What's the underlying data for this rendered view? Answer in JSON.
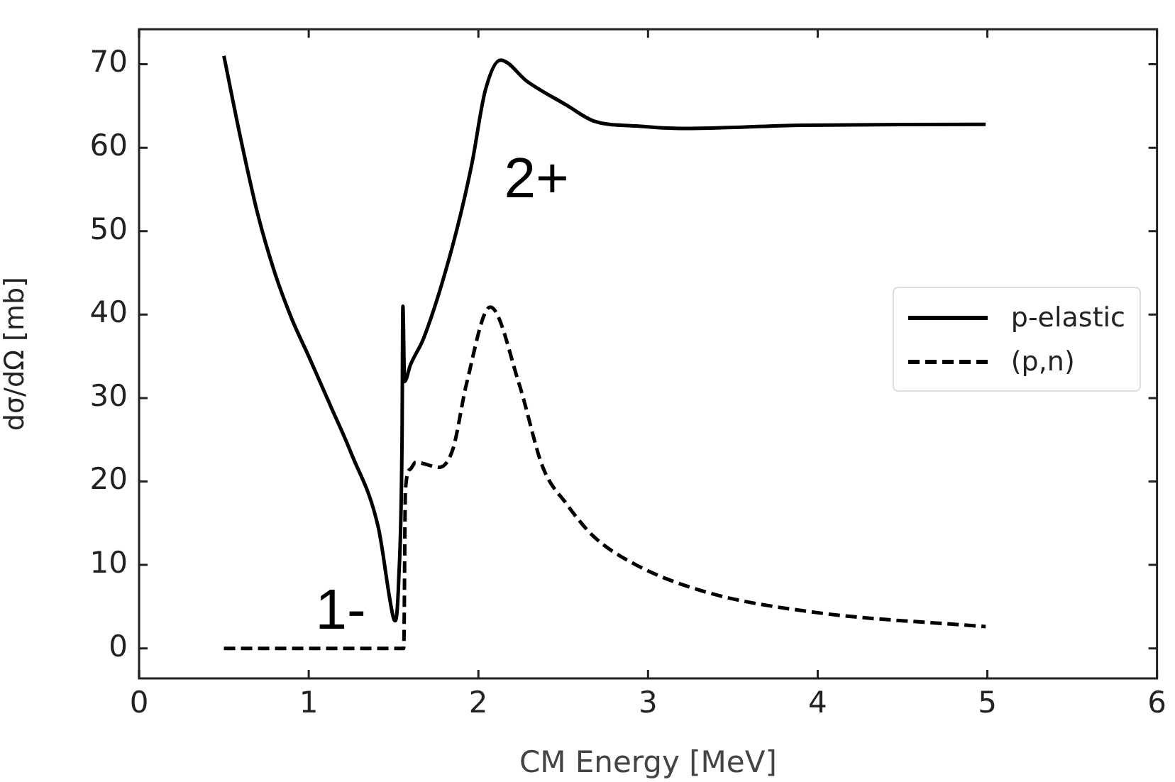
{
  "chart_data": {
    "type": "line",
    "xlabel": "CM Energy [MeV]",
    "ylabel": "dσ/dΩ [mb]",
    "xlim": [
      0,
      6
    ],
    "xticks": [
      0,
      1,
      2,
      3,
      4,
      5,
      6
    ],
    "ylim": [
      -3.6,
      74.2
    ],
    "yticks": [
      0,
      10,
      20,
      30,
      40,
      50,
      60,
      70
    ],
    "grid": false,
    "legend": "right",
    "marker": "none",
    "series": [
      {
        "name": "p-elastic",
        "color": "#000000",
        "line_style": "solid",
        "x": [
          0.5,
          0.6,
          0.7,
          0.8,
          0.9,
          1.0,
          1.13,
          1.25,
          1.41,
          1.5,
          1.51,
          1.53,
          1.55,
          1.555,
          1.565,
          1.6,
          1.68,
          1.85,
          1.96,
          2.04,
          2.13,
          2.29,
          2.52,
          2.68,
          2.93,
          3.21,
          3.91,
          4.99
        ],
        "values": [
          71,
          61,
          52,
          45,
          39.5,
          35,
          29,
          23.4,
          14.5,
          3.6,
          3.3,
          8,
          25,
          41,
          32,
          34,
          37.3,
          48.4,
          57.9,
          66.8,
          70.5,
          67.9,
          65.1,
          63.2,
          62.6,
          62.3,
          62.7,
          62.8
        ]
      },
      {
        "name": "(p,n)",
        "color": "#000000",
        "line_style": "dashed",
        "x": [
          0.5,
          1.0,
          1.56,
          1.57,
          1.6,
          1.63,
          1.77,
          1.85,
          1.93,
          2.07,
          2.24,
          2.38,
          2.52,
          2.68,
          2.93,
          3.35,
          3.99,
          4.99
        ],
        "values": [
          0,
          0,
          0,
          19,
          21.5,
          22.3,
          21.7,
          23.9,
          31.7,
          40.9,
          31.7,
          21.7,
          17.3,
          13.4,
          10,
          6.7,
          4.3,
          2.6
        ]
      }
    ],
    "annotations": [
      "2+",
      "1-"
    ]
  }
}
